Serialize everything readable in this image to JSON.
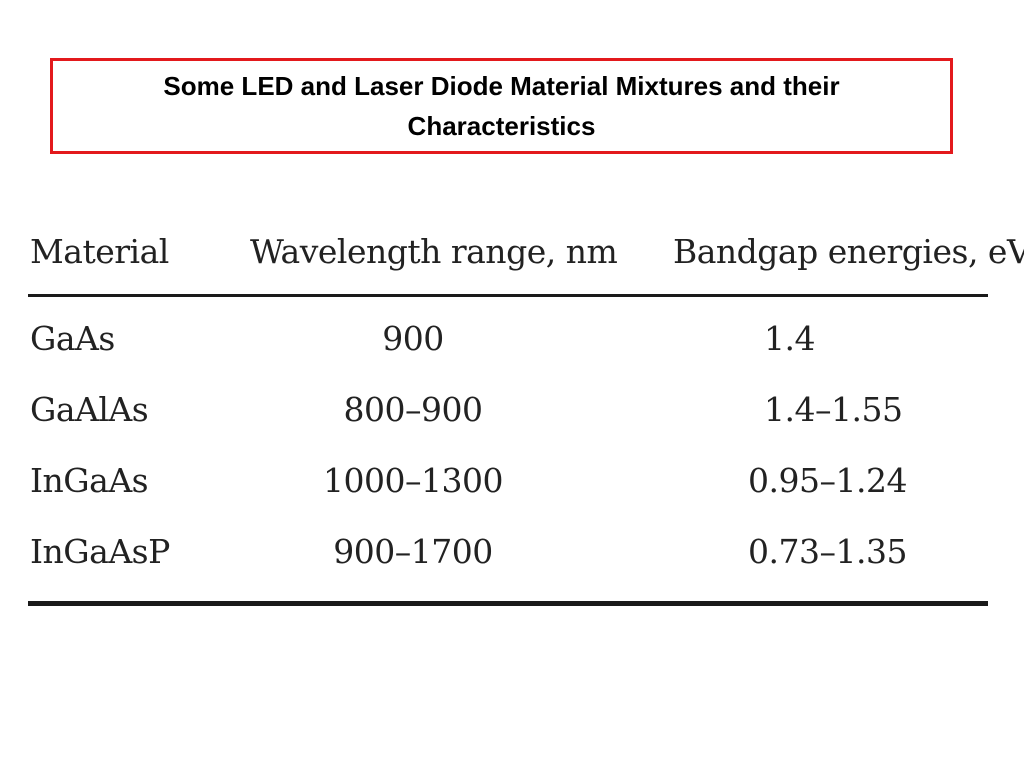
{
  "title": "Some LED and Laser Diode Material Mixtures and their Characteristics",
  "colors": {
    "title_border": "#e3191c",
    "rules": "#1a1a1a"
  },
  "table": {
    "headers": {
      "material": "Material",
      "wavelength": "Wavelength range, nm",
      "bandgap": "Bandgap energies, eV"
    },
    "rows": [
      {
        "material": "GaAs",
        "wavelength": "900",
        "bandgap": "1.4"
      },
      {
        "material": "GaAlAs",
        "wavelength": "800–900",
        "bandgap": "1.4–1.55"
      },
      {
        "material": "InGaAs",
        "wavelength": "1000–1300",
        "bandgap": "0.95–1.24"
      },
      {
        "material": "InGaAsP",
        "wavelength": "900–1700",
        "bandgap": "0.73–1.35"
      }
    ]
  }
}
